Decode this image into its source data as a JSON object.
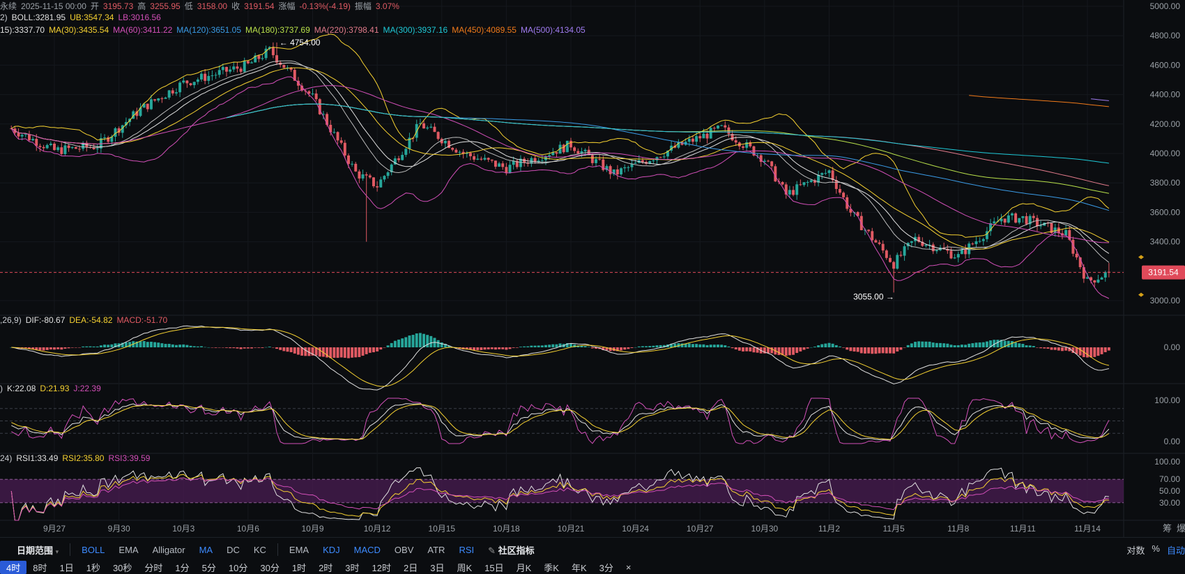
{
  "header": {
    "row1": {
      "label_prefix": "永续",
      "date": "2025-11-15 00:00",
      "open_label": "开",
      "open": "3195.73",
      "high_label": "高",
      "high": "3255.95",
      "low_label": "低",
      "low": "3158.00",
      "close_label": "收",
      "close": "3191.54",
      "change_label": "涨幅",
      "change": "-0.13%(-4.19)",
      "amp_label": "振幅",
      "amp": "3.07%"
    },
    "row2": {
      "prefix": "2)",
      "boll_label": "BOLL:3281.95",
      "ub_label": "UB:3547.34",
      "lb_label": "LB:3016.56"
    },
    "row3": {
      "prefix": "15):3337.70",
      "ma30": "MA(30):3435.54",
      "ma60": "MA(60):3411.22",
      "ma120": "MA(120):3651.05",
      "ma180": "MA(180):3737.69",
      "ma220": "MA(220):3798.41",
      "ma300": "MA(300):3937.16",
      "ma450": "MA(450):4089.55",
      "ma500": "MA(500):4134.05"
    },
    "macd": {
      "prefix": ",26,9)",
      "dif": "DIF:-80.67",
      "dea": "DEA:-54.82",
      "macd": "MACD:-51.70"
    },
    "kdj": {
      "prefix": ")",
      "k": "K:22.08",
      "d": "D:21.93",
      "j": "J:22.39"
    },
    "rsi": {
      "prefix": "24)",
      "r1": "RSI1:33.49",
      "r2": "RSI2:35.80",
      "r3": "RSI3:39.59"
    }
  },
  "colors": {
    "up": "#26a69a",
    "down": "#e05a63",
    "ma_white": "#e0e0e0",
    "yellow": "#f5d131",
    "magenta": "#d24fb8",
    "cyan": "#1ec8d6",
    "blue": "#3a9be6",
    "green_yellow": "#b8e04a",
    "peach": "#e07a8a",
    "orange": "#f07a1a",
    "purple": "#a07cf0",
    "price_tag": "#e04a5a"
  },
  "chart_data": [
    {
      "type": "candlestick",
      "title": "",
      "x_tick_labels": [
        "9月27",
        "9月30",
        "10月3",
        "10月6",
        "10月9",
        "10月12",
        "10月15",
        "10月18",
        "10月21",
        "10月24",
        "10月27",
        "10月30",
        "11月2",
        "11月5",
        "11月8",
        "11月11",
        "11月14"
      ],
      "y_tick_labels": [
        "5000.00",
        "4800.00",
        "4600.00",
        "4400.00",
        "4200.00",
        "4000.00",
        "3800.00",
        "3600.00",
        "3400.00",
        "3200.00",
        "3000.00"
      ],
      "ylim": [
        3000,
        5000
      ],
      "current_price": 3191.54,
      "current_price_label": "3191.54",
      "annotations": [
        {
          "text": "← 4754.00",
          "x": "10月7",
          "y": 4754.0
        },
        {
          "text": "3055.00 →",
          "x": "11月5",
          "y": 3055.0
        }
      ],
      "series_anchor_closes": [
        {
          "x": "9月25",
          "y": 4170
        },
        {
          "x": "9月27",
          "y": 4020
        },
        {
          "x": "9月29",
          "y": 4050
        },
        {
          "x": "10月1",
          "y": 4300
        },
        {
          "x": "10月3",
          "y": 4480
        },
        {
          "x": "10月6",
          "y": 4600
        },
        {
          "x": "10月7",
          "y": 4700
        },
        {
          "x": "10月9",
          "y": 4380
        },
        {
          "x": "10月11",
          "y": 3870
        },
        {
          "x": "10月12",
          "y": 3780
        },
        {
          "x": "10月14",
          "y": 4200
        },
        {
          "x": "10月16",
          "y": 4000
        },
        {
          "x": "10月18",
          "y": 3900
        },
        {
          "x": "10月21",
          "y": 4060
        },
        {
          "x": "10月23",
          "y": 3860
        },
        {
          "x": "10月26",
          "y": 4050
        },
        {
          "x": "10月28",
          "y": 4170
        },
        {
          "x": "10月30",
          "y": 3960
        },
        {
          "x": "10月31",
          "y": 3720
        },
        {
          "x": "11月2",
          "y": 3880
        },
        {
          "x": "11月3",
          "y": 3600
        },
        {
          "x": "11月5",
          "y": 3250
        },
        {
          "x": "11月6",
          "y": 3420
        },
        {
          "x": "11月8",
          "y": 3300
        },
        {
          "x": "11月10",
          "y": 3560
        },
        {
          "x": "11月11",
          "y": 3560
        },
        {
          "x": "11月13",
          "y": 3450
        },
        {
          "x": "11月14",
          "y": 3130
        },
        {
          "x": "11月15",
          "y": 3191.54
        }
      ]
    },
    {
      "type": "bar",
      "title": "",
      "name": "MACD",
      "y_tick_labels": [
        "0.00"
      ]
    },
    {
      "type": "line",
      "title": "",
      "name": "KDJ",
      "y_tick_labels": [
        "100.00",
        "0.00"
      ],
      "ylim": [
        0,
        100
      ]
    },
    {
      "type": "line",
      "title": "",
      "name": "RSI",
      "y_tick_labels": [
        "100.00",
        "70.00",
        "50.00",
        "30.00"
      ],
      "ylim": [
        0,
        100
      ],
      "band": [
        30,
        70
      ]
    }
  ],
  "indicator_bar": {
    "range_label": "日期范围",
    "main_items": [
      "BOLL",
      "EMA",
      "Alligator",
      "MA",
      "DC",
      "KC"
    ],
    "main_active": [
      "BOLL",
      "MA"
    ],
    "sub_items": [
      "EMA",
      "KDJ",
      "MACD",
      "OBV",
      "ATR",
      "RSI"
    ],
    "sub_active": [
      "KDJ",
      "MACD",
      "RSI"
    ],
    "community": "社区指标",
    "right": [
      "对数",
      "%",
      "自动"
    ]
  },
  "timeframes": [
    "4时",
    "8时",
    "1日",
    "1秒",
    "30秒",
    "分时",
    "1分",
    "5分",
    "10分",
    "30分",
    "1时",
    "2时",
    "3时",
    "12时",
    "2日",
    "3日",
    "周K",
    "15日",
    "月K",
    "季K",
    "年K",
    "3分"
  ],
  "timeframe_active": "4时",
  "corner_right": [
    "筹",
    "爆"
  ]
}
